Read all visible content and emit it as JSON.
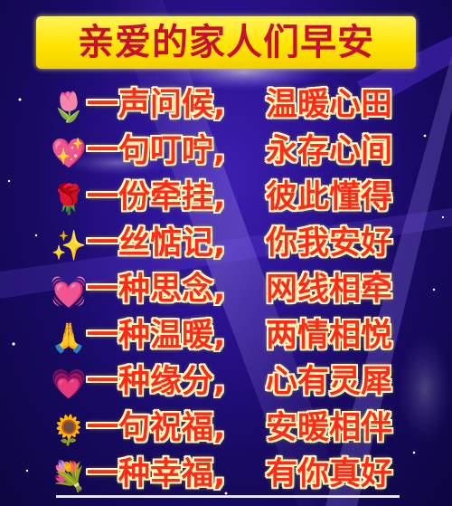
{
  "title": "亲爱的家人们早安",
  "lines": [
    {
      "icon": "tulip-icon",
      "glyph": "🌷",
      "left": "一声问候,",
      "right": "温暖心田"
    },
    {
      "icon": "sparkling-heart-icon",
      "glyph": "💖",
      "left": "一句叮咛,",
      "right": "永存心间"
    },
    {
      "icon": "rose-icon",
      "glyph": "🌹",
      "left": "一份牵挂,",
      "right": "彼此懂得"
    },
    {
      "icon": "sparkle-star-icon",
      "glyph": "✨",
      "left": "一丝惦记,",
      "right": "你我安好"
    },
    {
      "icon": "beating-heart-icon",
      "glyph": "💓",
      "left": "一种思念,",
      "right": "网线相牵"
    },
    {
      "icon": "praying-hands-icon",
      "glyph": "🙏",
      "left": "一种温暖,",
      "right": "两情相悦"
    },
    {
      "icon": "heart-icon",
      "glyph": "💗",
      "left": "一种缘分,",
      "right": "心有灵犀"
    },
    {
      "icon": "sunflower-icon",
      "glyph": "🌻",
      "left": "一句祝福,",
      "right": "安暖相伴"
    },
    {
      "icon": "bouquet-icon",
      "glyph": "💐",
      "left": "一种幸福,",
      "right": "有你真好"
    }
  ],
  "colors": {
    "banner": "#ffe400",
    "title_text": "#c8102e",
    "phrase_text": "#ff2a18",
    "phrase_outline": "#fff9c0",
    "background": "#2a1290"
  }
}
